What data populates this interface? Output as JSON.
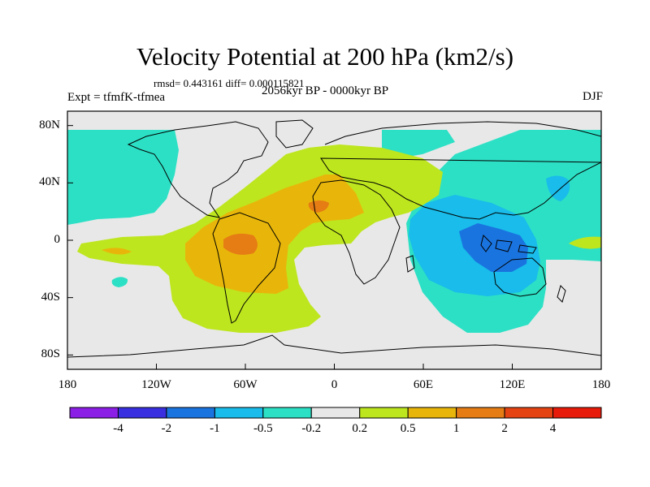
{
  "title": "Velocity Potential at 200 hPa (km2/s)",
  "stats_line": "rmsd= 0.443161 diff= 0.000115821",
  "left_label": "Expt = tfmfK-tfmea",
  "center_label": "2056kyr BP - 0000kyr BP",
  "right_label": "DJF",
  "y_axis": {
    "ticks": [
      {
        "label": "80N",
        "lat": 80
      },
      {
        "label": "40N",
        "lat": 40
      },
      {
        "label": "0",
        "lat": 0
      },
      {
        "label": "40S",
        "lat": -40
      },
      {
        "label": "80S",
        "lat": -80
      }
    ]
  },
  "x_axis": {
    "ticks": [
      {
        "label": "180",
        "lon": -180
      },
      {
        "label": "120W",
        "lon": -120
      },
      {
        "label": "60W",
        "lon": -60
      },
      {
        "label": "0",
        "lon": 0
      },
      {
        "label": "60E",
        "lon": 60
      },
      {
        "label": "120E",
        "lon": 120
      },
      {
        "label": "180",
        "lon": 180
      }
    ]
  },
  "colorbar": {
    "boxes": [
      "#8c1fe6",
      "#3a2fe0",
      "#1a74e0",
      "#19bcea",
      "#2ce0c5",
      "#e8e8e8",
      "#bde61e",
      "#e8b60a",
      "#e57c14",
      "#e54412",
      "#e81b0a"
    ],
    "labels": [
      "-4",
      "-2",
      "-1",
      "-0.5",
      "-0.2",
      "0.2",
      "0.5",
      "1",
      "2",
      "4"
    ]
  },
  "levels": {
    "neutral": "#e8e8e8",
    "neg_0_2": "#2ce0c5",
    "neg_0_5": "#19bcea",
    "neg_1": "#1a74e0",
    "pos_0_2": "#bde61e",
    "pos_0_5": "#e8b60a",
    "pos_1": "#e57c14"
  }
}
